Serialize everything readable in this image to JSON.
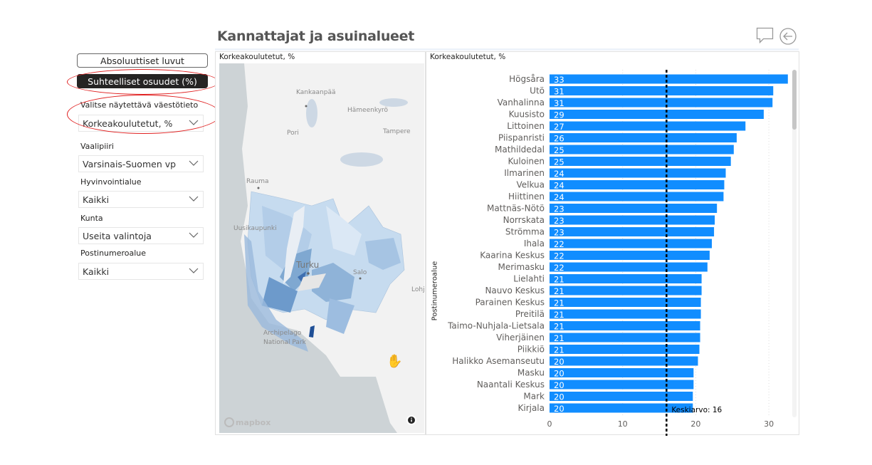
{
  "page_title": "Kannattajat ja asuinalueet",
  "header_icons": [
    "comment-icon",
    "back-arrow-icon"
  ],
  "buttons": {
    "absolute": "Absoluuttiset luvut",
    "relative": "Suhteelliset osuudet (%)"
  },
  "filters": {
    "metric": {
      "label": "Valitse näytettävä väestötieto",
      "value": "Korkeakoulutetut, %"
    },
    "vaalipiiri": {
      "label": "Vaalipiiri",
      "value": "Varsinais-Suomen vp"
    },
    "hyvinvointialue": {
      "label": "Hyvinvointialue",
      "value": "Kaikki"
    },
    "kunta": {
      "label": "Kunta",
      "value": "Useita valintoja"
    },
    "postinumeroalue": {
      "label": "Postinumeroalue",
      "value": "Kaikki"
    }
  },
  "map": {
    "title": "Korkeakoulutetut, %",
    "places": [
      "Kankaanpää",
      "Hämeenkyrö",
      "Pori",
      "Tampere",
      "Rauma",
      "Uusikaupunki",
      "Turku",
      "Salo",
      "Lohja",
      "Archipelago",
      "National Park"
    ],
    "attribution": "mapbox",
    "info_icon": "info-icon"
  },
  "chart_data": {
    "type": "bar",
    "orientation": "horizontal",
    "title": "Korkeakoulutetut, %",
    "ylabel": "Postinumeroalue",
    "xlabel": "",
    "xlim": [
      0,
      33
    ],
    "xticks": [
      0,
      10,
      20,
      30
    ],
    "grid": true,
    "color": "#118DFF",
    "categories": [
      "Högsåra",
      "Utö",
      "Vanhalinna",
      "Kuusisto",
      "Littoinen",
      "Piispanristi",
      "Mathildedal",
      "Kuloinen",
      "Ilmarinen",
      "Velkua",
      "Hiittinen",
      "Mattnäs-Nötö",
      "Norrskata",
      "Strömma",
      "Ihala",
      "Kaarina Keskus",
      "Merimasku",
      "Lielahti",
      "Nauvo Keskus",
      "Parainen Keskus",
      "Preitilä",
      "Taimo-Nuhjala-Lietsala",
      "Viherjäinen",
      "Piikkiö",
      "Halikko Asemanseutu",
      "Masku",
      "Naantali Keskus",
      "Mark",
      "Kirjala"
    ],
    "values": [
      32.6,
      30.6,
      30.5,
      29.3,
      26.8,
      25.6,
      25.2,
      24.8,
      24.1,
      23.9,
      23.8,
      22.9,
      22.6,
      22.5,
      22.2,
      21.9,
      21.6,
      20.8,
      20.8,
      20.7,
      20.7,
      20.6,
      20.6,
      20.5,
      20.3,
      19.7,
      19.7,
      19.6,
      19.6
    ],
    "data_labels": [
      "33",
      "31",
      "31",
      "29",
      "27",
      "26",
      "25",
      "25",
      "24",
      "24",
      "24",
      "23",
      "23",
      "23",
      "22",
      "22",
      "22",
      "21",
      "21",
      "21",
      "21",
      "21",
      "21",
      "21",
      "20",
      "20",
      "20",
      "20",
      "20"
    ],
    "average": {
      "value": 16,
      "label": "Keskiarvo: 16"
    }
  }
}
